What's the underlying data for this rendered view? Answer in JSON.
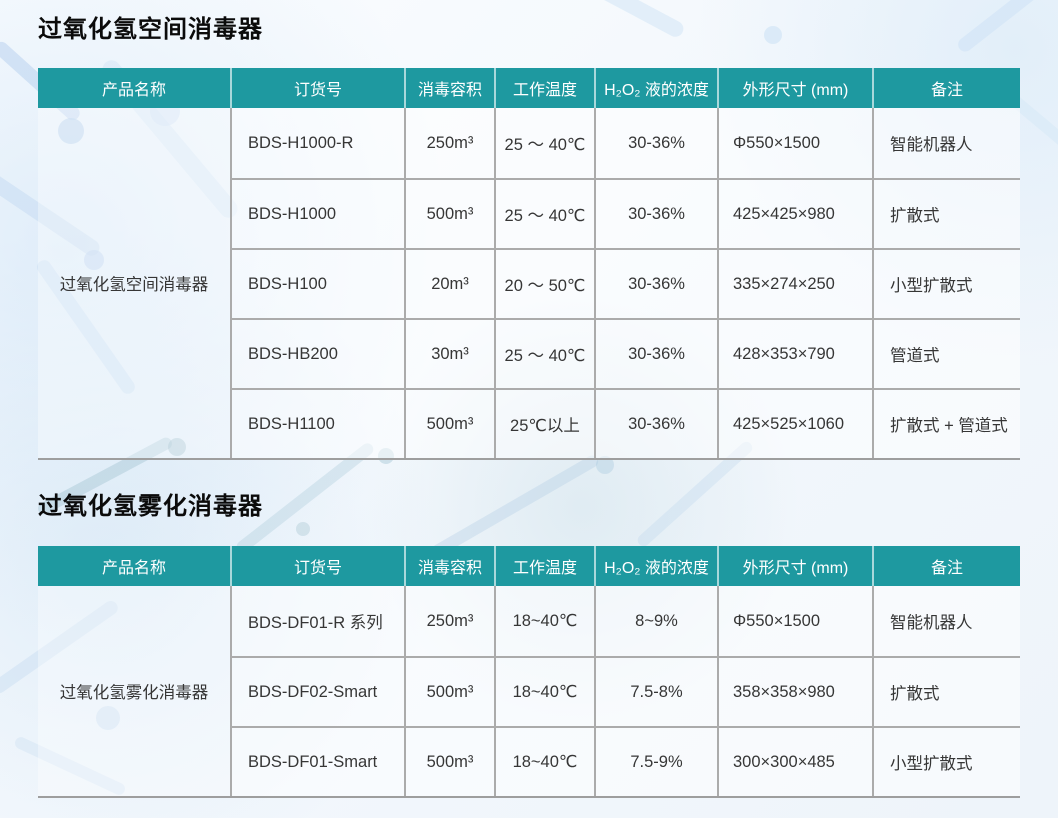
{
  "theme": {
    "header_bg": "#1e99a0",
    "header_text": "#ffffff",
    "grid_line": "#ababab",
    "title_color": "#0b0b0b",
    "body_text": "#363636"
  },
  "columns": [
    {
      "label": "产品名称"
    },
    {
      "label": "订货号"
    },
    {
      "label": "消毒容积"
    },
    {
      "label": "工作温度"
    },
    {
      "label": "H₂O₂ 液的浓度"
    },
    {
      "label": "外形尺寸 (mm)"
    },
    {
      "label": "备注"
    }
  ],
  "sections": [
    {
      "title": "过氧化氢空间消毒器",
      "product_name": "过氧化氢空间消毒器",
      "rows": [
        {
          "order_no": "BDS-H1000-R",
          "volume": "250m³",
          "temperature": "25 ～ 40℃",
          "concentration": "30-36%",
          "dimensions": "Φ550×1500",
          "remark": "智能机器人"
        },
        {
          "order_no": "BDS-H1000",
          "volume": "500m³",
          "temperature": "25 ～ 40℃",
          "concentration": "30-36%",
          "dimensions": "425×425×980",
          "remark": "扩散式"
        },
        {
          "order_no": "BDS-H100",
          "volume": "20m³",
          "temperature": "20 ～ 50℃",
          "concentration": "30-36%",
          "dimensions": "335×274×250",
          "remark": "小型扩散式"
        },
        {
          "order_no": "BDS-HB200",
          "volume": "30m³",
          "temperature": "25 ～ 40℃",
          "concentration": "30-36%",
          "dimensions": "428×353×790",
          "remark": "管道式"
        },
        {
          "order_no": "BDS-H1100",
          "volume": "500m³",
          "temperature": "25℃以上",
          "concentration": "30-36%",
          "dimensions": "425×525×1060",
          "remark": "扩散式 + 管道式"
        }
      ]
    },
    {
      "title": "过氧化氢雾化消毒器",
      "product_name": "过氧化氢雾化消毒器",
      "rows": [
        {
          "order_no": "BDS-DF01-R 系列",
          "volume": "250m³",
          "temperature": "18~40℃",
          "concentration": "8~9%",
          "dimensions": "Φ550×1500",
          "remark": "智能机器人"
        },
        {
          "order_no": "BDS-DF02-Smart",
          "volume": "500m³",
          "temperature": "18~40℃",
          "concentration": "7.5-8%",
          "dimensions": "358×358×980",
          "remark": "扩散式"
        },
        {
          "order_no": "BDS-DF01-Smart",
          "volume": "500m³",
          "temperature": "18~40℃",
          "concentration": "7.5-9%",
          "dimensions": "300×300×485",
          "remark": "小型扩散式"
        }
      ]
    }
  ]
}
